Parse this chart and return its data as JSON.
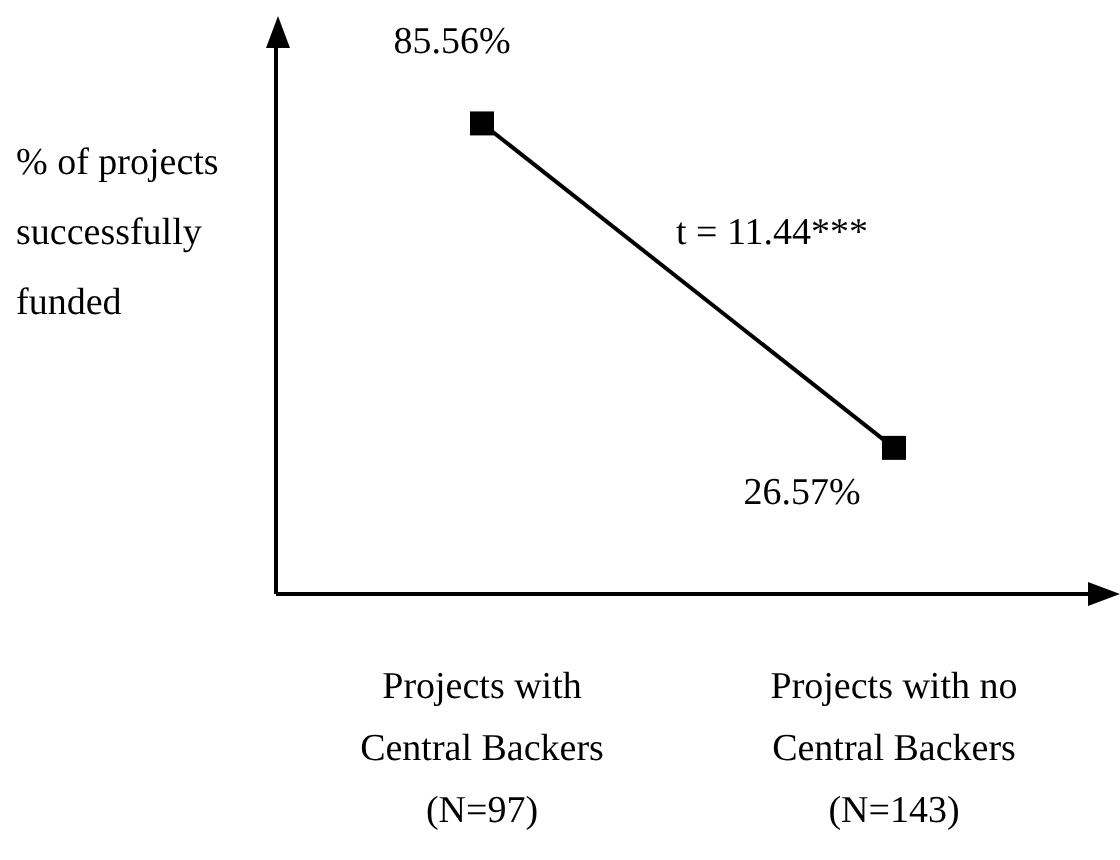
{
  "chart_data": {
    "type": "line",
    "ylabel": "% of projects successfully funded",
    "categories": [
      "Projects with\nCentral Backers\n(N=97)",
      "Projects with no\nCentral Backers\n(N=143)"
    ],
    "series": [
      {
        "color": "#000000",
        "values": [
          85.56,
          26.57
        ],
        "value_labels": [
          "85.56%",
          "26.57%"
        ]
      }
    ],
    "marker": "square",
    "line_style": "solid",
    "grid": false,
    "legend": false,
    "tick_labels": "x",
    "annotations": [
      "t = 11.44***"
    ]
  }
}
